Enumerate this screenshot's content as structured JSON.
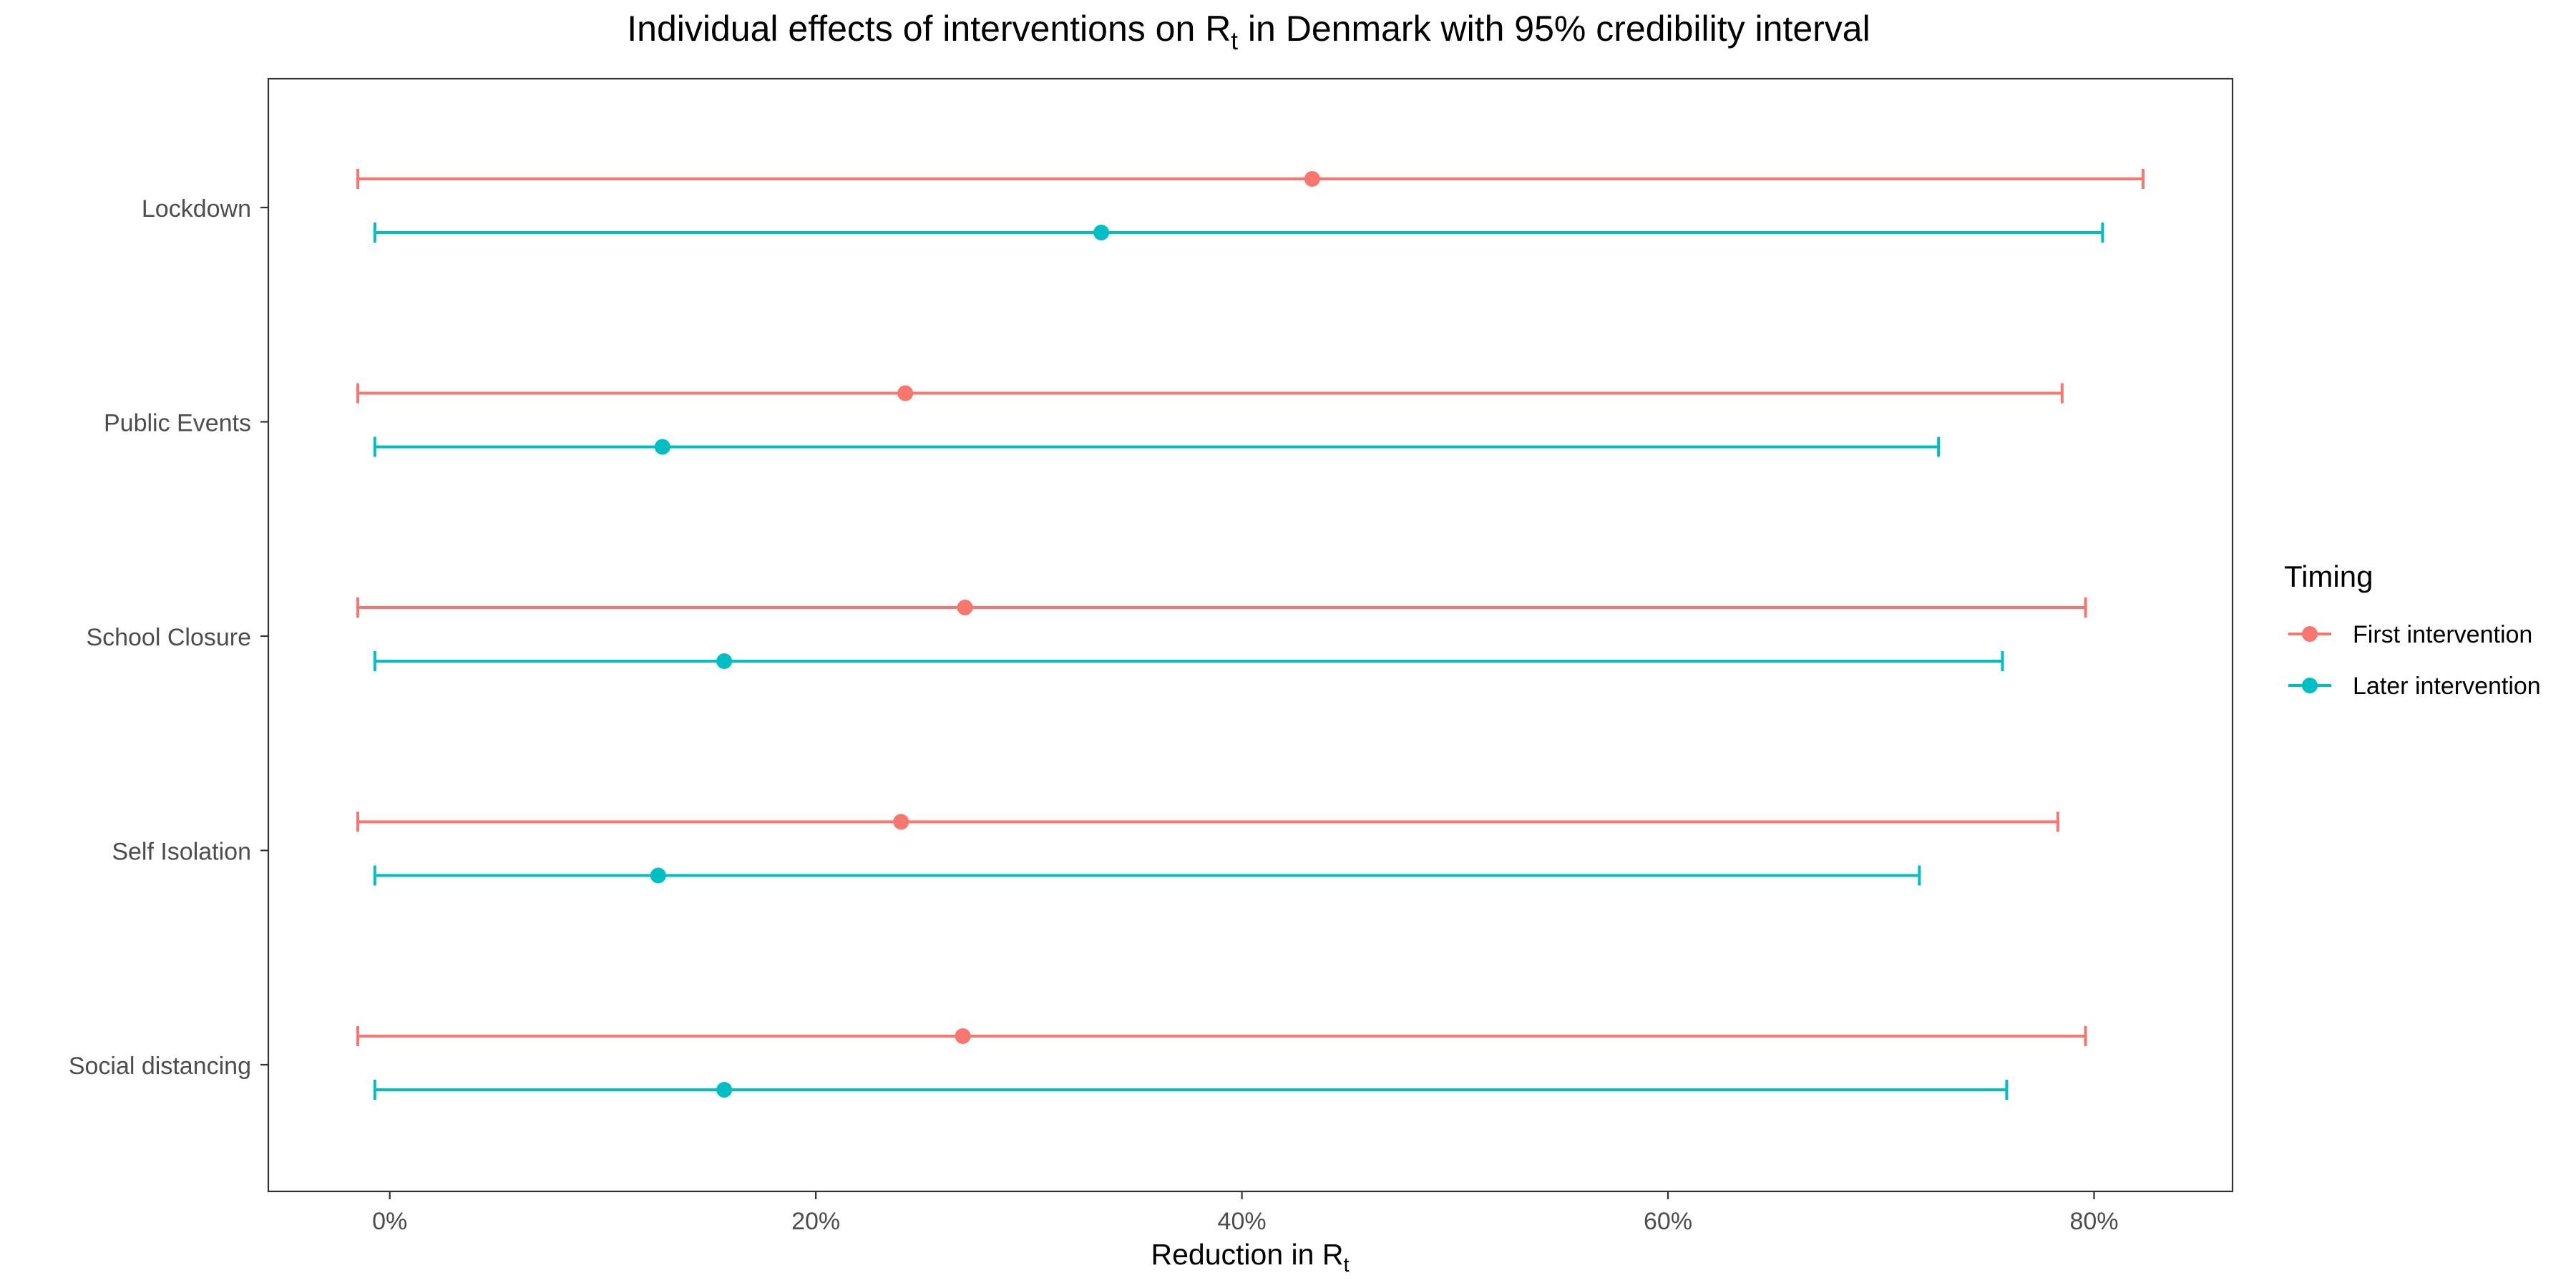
{
  "chart_data": {
    "type": "scatter",
    "subtype": "point-range with 95% credibility interval error bars, horizontal",
    "title": {
      "prefix": "Individual effects of interventions on ",
      "symbol": "R",
      "subscript": "t",
      "middle": " in ",
      "country": "Denmark",
      "suffix": " with 95% credibility interval"
    },
    "xlabel": {
      "text": "Reduction in ",
      "symbol": "R",
      "subscript": "t"
    },
    "ylabel": "",
    "xlim": [
      -5.7,
      86.5
    ],
    "x_ticks": [
      0,
      20,
      40,
      60,
      80
    ],
    "x_tick_labels": [
      "0%",
      "20%",
      "40%",
      "60%",
      "80%"
    ],
    "categories": [
      "Lockdown",
      "Public Events",
      "School Closure",
      "Self Isolation",
      "Social distancing"
    ],
    "grid": false,
    "legend": {
      "title": "Timing",
      "position": "right"
    },
    "series": [
      {
        "name": "First intervention",
        "color": "#F8766D",
        "points": [
          {
            "category": "Lockdown",
            "mean": 43.3,
            "lower": -1.5,
            "upper": 82.3
          },
          {
            "category": "Public Events",
            "mean": 24.2,
            "lower": -1.5,
            "upper": 78.5
          },
          {
            "category": "School Closure",
            "mean": 27.0,
            "lower": -1.5,
            "upper": 79.6
          },
          {
            "category": "Self Isolation",
            "mean": 24.0,
            "lower": -1.5,
            "upper": 78.3
          },
          {
            "category": "Social distancing",
            "mean": 26.9,
            "lower": -1.5,
            "upper": 79.6
          }
        ]
      },
      {
        "name": "Later intervention",
        "color": "#00BFC4",
        "points": [
          {
            "category": "Lockdown",
            "mean": 33.4,
            "lower": -0.7,
            "upper": 80.4
          },
          {
            "category": "Public Events",
            "mean": 12.8,
            "lower": -0.7,
            "upper": 72.7
          },
          {
            "category": "School Closure",
            "mean": 15.7,
            "lower": -0.7,
            "upper": 75.7
          },
          {
            "category": "Self Isolation",
            "mean": 12.6,
            "lower": -0.7,
            "upper": 71.8
          },
          {
            "category": "Social distancing",
            "mean": 15.7,
            "lower": -0.7,
            "upper": 75.9
          }
        ]
      }
    ]
  }
}
